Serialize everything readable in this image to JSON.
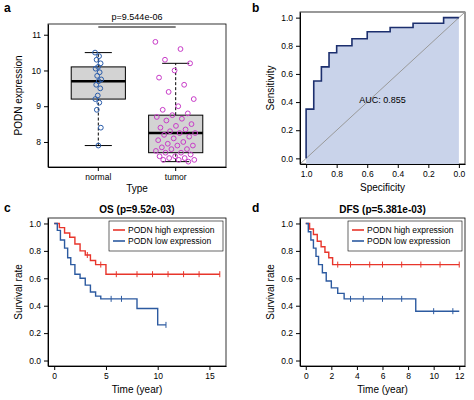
{
  "chart_data": [
    {
      "type": "box",
      "panel": "a",
      "x_label": "Type",
      "y_label": "PODN expression",
      "annotation": "p=9.544e-06",
      "categories": [
        "normal",
        "tumor"
      ],
      "colors": [
        "#2a5caa",
        "#c83cc8"
      ],
      "boxes": [
        {
          "min": 7.9,
          "q1": 9.2,
          "median": 9.7,
          "q3": 10.1,
          "max": 10.5
        },
        {
          "min": 7.45,
          "q1": 7.7,
          "median": 8.25,
          "q3": 8.75,
          "max": 10.2
        }
      ],
      "points": [
        [
          10.5,
          10.4,
          10.3,
          10.2,
          10.1,
          10.05,
          9.95,
          9.85,
          9.75,
          9.7,
          9.6,
          9.5,
          9.3,
          9.2,
          9.1,
          8.9,
          8.4,
          7.9
        ],
        [
          10.8,
          10.6,
          10.3,
          10.2,
          10.0,
          9.8,
          9.6,
          9.4,
          9.2,
          9.0,
          8.9,
          8.8,
          8.75,
          8.7,
          8.65,
          8.6,
          8.5,
          8.45,
          8.4,
          8.35,
          8.3,
          8.25,
          8.25,
          8.2,
          8.15,
          8.1,
          8.05,
          8.0,
          7.95,
          7.9,
          7.9,
          7.85,
          7.8,
          7.8,
          7.75,
          7.7,
          7.7,
          7.65,
          7.6,
          7.6,
          7.55,
          7.55,
          7.5,
          7.5,
          7.5,
          7.45
        ]
      ],
      "ylim": [
        7.3,
        11.3
      ],
      "yticks": [
        8,
        9,
        10,
        11
      ]
    },
    {
      "type": "line",
      "panel": "b",
      "x_label": "Specificity",
      "y_label": "Sensitivity",
      "annotation": "AUC: 0.855",
      "x": [
        1,
        1,
        0.95,
        0.95,
        0.9,
        0.9,
        0.85,
        0.85,
        0.8,
        0.8,
        0.7,
        0.7,
        0.6,
        0.6,
        0.45,
        0.45,
        0.3,
        0.3,
        0.1,
        0.1,
        0
      ],
      "series": [
        {
          "color": "#1c2f6e",
          "values": [
            0,
            0.35,
            0.35,
            0.55,
            0.55,
            0.65,
            0.65,
            0.75,
            0.75,
            0.8,
            0.8,
            0.85,
            0.85,
            0.9,
            0.9,
            0.93,
            0.93,
            0.96,
            0.96,
            1,
            1
          ]
        }
      ],
      "xlim": [
        1.04,
        -0.04
      ],
      "ylim": [
        -0.04,
        1.04
      ],
      "xticks": [
        {
          "value": 1,
          "label": "1.0"
        },
        {
          "value": 0.8,
          "label": "0.8"
        },
        {
          "value": 0.6,
          "label": "0.6"
        },
        {
          "value": 0.4,
          "label": "0.4"
        },
        {
          "value": 0.2,
          "label": "0.2"
        },
        {
          "value": 0,
          "label": "0.0"
        }
      ],
      "yticks": [
        {
          "value": 0,
          "label": "0.0"
        },
        {
          "value": 0.2,
          "label": "0.2"
        },
        {
          "value": 0.4,
          "label": "0.4"
        },
        {
          "value": 0.6,
          "label": "0.6"
        },
        {
          "value": 0.8,
          "label": "0.8"
        },
        {
          "value": 1,
          "label": "1.0"
        }
      ]
    },
    {
      "type": "line",
      "panel": "c",
      "title": "OS (p=9.52e-03)",
      "x_label": "Time (year)",
      "y_label": "Survival rate",
      "legend": "top-right",
      "series": [
        {
          "name": "PODN high expression",
          "color": "#e8352b",
          "x": [
            0,
            0.5,
            1,
            1.5,
            2,
            2.5,
            3,
            3.5,
            4,
            5,
            16
          ],
          "values": [
            1,
            0.97,
            0.93,
            0.9,
            0.85,
            0.8,
            0.77,
            0.73,
            0.7,
            0.63,
            0.63
          ],
          "censored": [
            3.2,
            4.5,
            6,
            8,
            9.5,
            11,
            12.5,
            14,
            16
          ]
        },
        {
          "name": "PODN low expression",
          "color": "#2c5aa0",
          "x": [
            0,
            0.3,
            0.6,
            1,
            1.3,
            1.6,
            2,
            2.5,
            3,
            3.5,
            4,
            4.5,
            8,
            10,
            10.8
          ],
          "values": [
            1,
            0.95,
            0.88,
            0.82,
            0.75,
            0.7,
            0.63,
            0.6,
            0.55,
            0.5,
            0.47,
            0.45,
            0.38,
            0.26,
            0.26
          ],
          "censored": [
            5.5,
            6.5,
            10.8
          ]
        }
      ],
      "xlim": [
        -0.6,
        16.6
      ],
      "xticks": [
        0,
        5,
        10,
        15
      ],
      "ylim": [
        -0.04,
        1.04
      ],
      "yticks": [
        {
          "value": 0,
          "label": "0.0"
        },
        {
          "value": 0.2,
          "label": "0.2"
        },
        {
          "value": 0.4,
          "label": "0.4"
        },
        {
          "value": 0.6,
          "label": "0.6"
        },
        {
          "value": 0.8,
          "label": "0.8"
        },
        {
          "value": 1,
          "label": "1.0"
        }
      ]
    },
    {
      "type": "line",
      "panel": "d",
      "title": "DFS (p=5.381e-03)",
      "x_label": "Time (year)",
      "y_label": "Survival rate",
      "legend": "top-right",
      "series": [
        {
          "name": "PODN high expression",
          "color": "#e8352b",
          "x": [
            0,
            0.3,
            0.6,
            0.9,
            1.2,
            1.5,
            1.8,
            2.1,
            12
          ],
          "values": [
            1,
            0.96,
            0.92,
            0.87,
            0.83,
            0.79,
            0.75,
            0.7,
            0.7
          ],
          "censored": [
            2.5,
            3.5,
            5,
            6,
            7.5,
            9,
            10.5,
            12
          ]
        },
        {
          "name": "PODN low expression",
          "color": "#2c5aa0",
          "x": [
            0,
            0.2,
            0.4,
            0.6,
            0.8,
            1,
            1.3,
            1.6,
            2,
            2.5,
            3,
            8.6,
            12
          ],
          "values": [
            1,
            0.94,
            0.88,
            0.82,
            0.76,
            0.7,
            0.64,
            0.58,
            0.53,
            0.49,
            0.45,
            0.36,
            0.36
          ],
          "censored": [
            3.5,
            4.5,
            6,
            7.5,
            10,
            11.5
          ]
        }
      ],
      "xlim": [
        -0.45,
        12.45
      ],
      "xticks": [
        0,
        2,
        4,
        6,
        8,
        10,
        12
      ],
      "ylim": [
        -0.04,
        1.04
      ],
      "yticks": [
        {
          "value": 0,
          "label": "0.0"
        },
        {
          "value": 0.2,
          "label": "0.2"
        },
        {
          "value": 0.4,
          "label": "0.4"
        },
        {
          "value": 0.6,
          "label": "0.6"
        },
        {
          "value": 0.8,
          "label": "0.8"
        },
        {
          "value": 1,
          "label": "1.0"
        }
      ]
    }
  ]
}
